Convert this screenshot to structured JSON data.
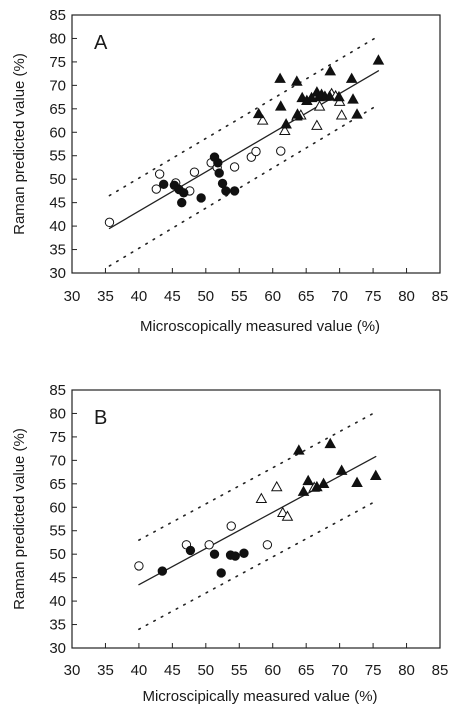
{
  "chart_data": [
    {
      "type": "scatter",
      "panel_label": "A",
      "xlabel": "Microscopically measured value (%)",
      "ylabel": "Raman predicted value (%)",
      "xlim": [
        30,
        85
      ],
      "ylim": [
        30,
        85
      ],
      "xticks": [
        30,
        35,
        40,
        45,
        50,
        55,
        60,
        65,
        70,
        75,
        80,
        85
      ],
      "yticks": [
        30,
        35,
        40,
        45,
        50,
        55,
        60,
        65,
        70,
        75,
        80,
        85
      ],
      "grid": false,
      "legend": "none",
      "series": [
        {
          "marker": "open-circle",
          "x": [
            35.6,
            42.6,
            43.1,
            45.5,
            47.6,
            48.3,
            50.8,
            51.7,
            54.3,
            56.8,
            57.5,
            61.2
          ],
          "y": [
            40.8,
            47.9,
            51.1,
            49.2,
            47.5,
            51.5,
            53.5,
            52.5,
            52.6,
            54.7,
            55.9,
            56.0
          ]
        },
        {
          "marker": "filled-circle",
          "x": [
            43.7,
            45.3,
            46.0,
            46.4,
            46.7,
            49.3,
            51.3,
            51.8,
            52.0,
            52.5,
            53.0,
            54.3
          ],
          "y": [
            48.9,
            48.7,
            47.8,
            45.0,
            47.1,
            46.0,
            54.7,
            53.5,
            51.3,
            49.1,
            47.5,
            47.5
          ]
        },
        {
          "marker": "open-triangle",
          "x": [
            58.5,
            61.8,
            63.6,
            64.2,
            66.6,
            67.0,
            68.8,
            69.4,
            70.0,
            70.3
          ],
          "y": [
            62.5,
            60.3,
            63.4,
            63.6,
            61.4,
            65.5,
            68.2,
            67.7,
            66.5,
            63.6
          ]
        },
        {
          "marker": "filled-triangle",
          "x": [
            57.9,
            61.1,
            61.2,
            62.0,
            63.6,
            63.7,
            64.4,
            65.1,
            65.8,
            66.6,
            66.9,
            67.3,
            67.8,
            68.5,
            68.6,
            69.9,
            71.8,
            72.0,
            72.6,
            75.8
          ],
          "y": [
            63.9,
            71.4,
            65.5,
            61.7,
            70.8,
            63.8,
            67.3,
            66.7,
            67.3,
            68.5,
            67.5,
            68.0,
            67.6,
            67.6,
            73.0,
            67.5,
            71.4,
            67.0,
            63.8,
            75.3
          ]
        }
      ],
      "fit_line": {
        "x": [
          35.6,
          75.8
        ],
        "y": [
          39.5,
          73.1
        ]
      },
      "prediction_band_upper": {
        "x": [
          35.6,
          75.8
        ],
        "y": [
          46.5,
          80.5
        ]
      },
      "prediction_band_lower": {
        "x": [
          35.6,
          75.8
        ],
        "y": [
          31.5,
          65.9
        ]
      }
    },
    {
      "type": "scatter",
      "panel_label": "B",
      "xlabel": "Microscipically measured value (%)",
      "ylabel": "Raman predicted value (%)",
      "xlim": [
        30,
        85
      ],
      "ylim": [
        30,
        85
      ],
      "xticks": [
        30,
        35,
        40,
        45,
        50,
        55,
        60,
        65,
        70,
        75,
        80,
        85
      ],
      "yticks": [
        30,
        35,
        40,
        45,
        50,
        55,
        60,
        65,
        70,
        75,
        80,
        85
      ],
      "grid": false,
      "legend": "none",
      "series": [
        {
          "marker": "open-circle",
          "x": [
            40.0,
            47.1,
            50.5,
            53.8,
            59.2
          ],
          "y": [
            47.5,
            52.0,
            52.0,
            56.0,
            52.0
          ]
        },
        {
          "marker": "filled-circle",
          "x": [
            43.5,
            47.7,
            51.3,
            52.3,
            53.7,
            54.4,
            55.7
          ],
          "y": [
            46.4,
            50.8,
            50.0,
            46.0,
            49.8,
            49.6,
            50.2
          ]
        },
        {
          "marker": "open-triangle",
          "x": [
            58.3,
            60.6,
            61.5,
            62.2,
            66.2
          ],
          "y": [
            61.8,
            64.3,
            58.8,
            58.0,
            64.2
          ]
        },
        {
          "marker": "filled-triangle",
          "x": [
            63.9,
            64.6,
            65.3,
            66.6,
            67.6,
            68.6,
            70.3,
            72.6,
            75.4
          ],
          "y": [
            72.1,
            63.3,
            65.6,
            64.3,
            65.0,
            73.5,
            67.8,
            65.2,
            66.7
          ]
        }
      ],
      "fit_line": {
        "x": [
          40.0,
          75.4
        ],
        "y": [
          43.5,
          70.8
        ]
      },
      "prediction_band_upper": {
        "x": [
          40.0,
          75.4
        ],
        "y": [
          53.0,
          80.3
        ]
      },
      "prediction_band_lower": {
        "x": [
          40.0,
          75.4
        ],
        "y": [
          34.0,
          61.3
        ]
      }
    }
  ]
}
